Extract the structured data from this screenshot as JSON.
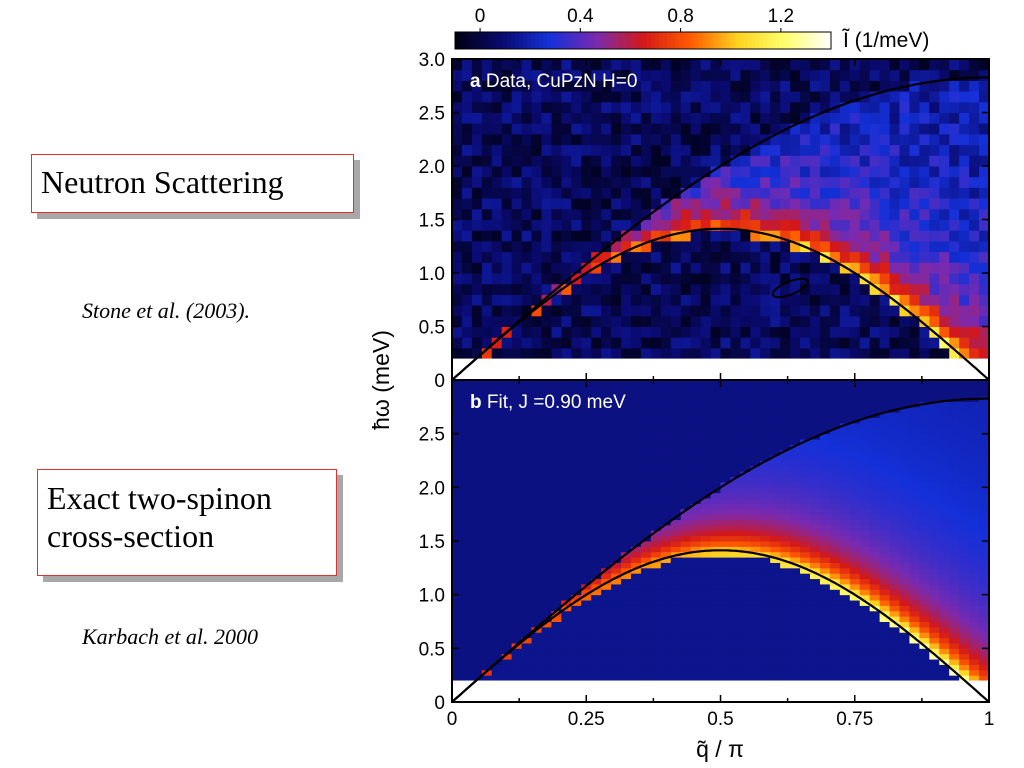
{
  "callouts": {
    "neutron": "Neutron Scattering",
    "exact_line1": "Exact two-spinon",
    "exact_line2": "cross-section"
  },
  "citations": {
    "stone": "Stone et al. (2003).",
    "karbach": "Karbach et al. 2000"
  },
  "colorbar": {
    "tick_labels": [
      "0",
      "0.4",
      "0.8",
      "1.2"
    ],
    "tick_values": [
      0,
      0.4,
      0.8,
      1.2
    ],
    "range": [
      -0.1,
      1.4
    ],
    "label": "Ĩ (1/meV)",
    "colormap": [
      "#000010",
      "#0a0a70",
      "#1430d8",
      "#7a2ab0",
      "#d41818",
      "#ff5a00",
      "#ffd21e",
      "#ffff6e",
      "#ffffff"
    ]
  },
  "chart_data": [
    {
      "type": "heatmap",
      "panel_label": "a",
      "title": "Data, CuPzN H=0",
      "xlabel": "q̃ / π",
      "ylabel": "ħω (meV)",
      "xlim": [
        0,
        1
      ],
      "ylim": [
        0,
        3.0
      ],
      "x_ticks": [
        "0",
        "0.25",
        "0.5",
        "0.75",
        "1"
      ],
      "y_ticks": [
        "0",
        "0.5",
        "1.0",
        "1.5",
        "2.0",
        "2.5",
        "3.0"
      ],
      "data_min_energy": 0.2,
      "background_intensity": 0.08,
      "continuum_intensity_peak": 0.7,
      "boundaries": {
        "lower": "π J/2 |sin(π q)|",
        "upper": "π J |sin(π q/2)|",
        "J_meV": 0.9
      },
      "resolution_ellipse": {
        "q": 0.63,
        "energy": 0.86,
        "half_width_q": 0.035,
        "half_height_energy": 0.06
      }
    },
    {
      "type": "heatmap",
      "panel_label": "b",
      "title": "Fit, J =0.90 meV",
      "xlabel": "q̃ / π",
      "ylabel": "ħω (meV)",
      "xlim": [
        0,
        1
      ],
      "ylim": [
        0,
        3.0
      ],
      "x_ticks": [
        "0",
        "0.25",
        "0.5",
        "0.75",
        "1"
      ],
      "y_ticks": [
        "0",
        "0.5",
        "1.0",
        "1.5",
        "2.0",
        "2.5"
      ],
      "data_min_energy": 0.2,
      "background_intensity": 0.15,
      "boundaries": {
        "lower": "π J/2 |sin(π q)|",
        "upper": "π J |sin(π q/2)|",
        "J_meV": 0.9
      }
    }
  ]
}
